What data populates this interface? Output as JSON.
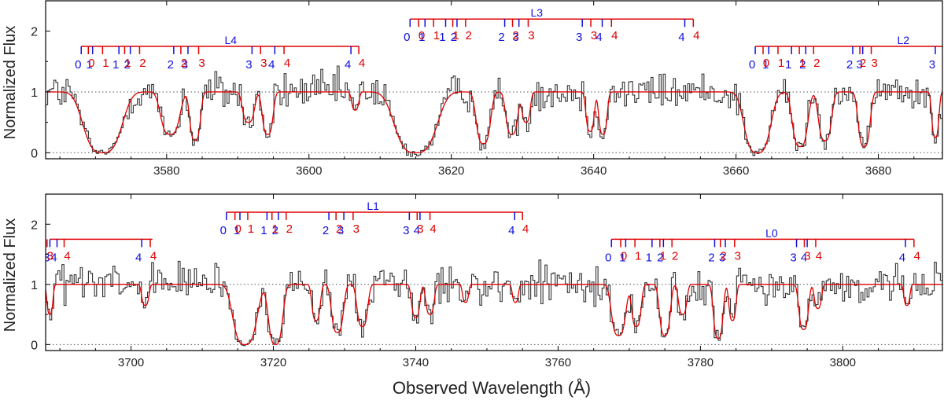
{
  "colors": {
    "data": "#333333",
    "model": "#e00000",
    "blue": "#1010e0",
    "red": "#e00000",
    "axis": "#000000",
    "grid": "#555555"
  },
  "chart_data": [
    {
      "type": "line",
      "panel": "top",
      "ylabel": "Normalized Flux",
      "xlim": [
        3563,
        3689
      ],
      "ylim": [
        -0.1,
        2.5
      ],
      "xticks": [
        3580,
        3600,
        3620,
        3640,
        3660,
        3680
      ],
      "yticks": [
        0,
        1,
        2
      ],
      "grid_lines_y": [
        0,
        1
      ],
      "series": [
        {
          "name": "observed flux",
          "style": "histogram",
          "color": "#333333"
        },
        {
          "name": "model",
          "style": "line",
          "color": "#e00000"
        }
      ],
      "absorption_troughs": [
        {
          "center": 3571,
          "width": 3.2,
          "depth": 1.0
        },
        {
          "center": 3580.5,
          "width": 1.6,
          "depth": 0.7
        },
        {
          "center": 3584,
          "width": 0.9,
          "depth": 0.8
        },
        {
          "center": 3591.5,
          "width": 1.0,
          "depth": 0.5
        },
        {
          "center": 3594.2,
          "width": 0.9,
          "depth": 0.7
        },
        {
          "center": 3606.5,
          "width": 0.6,
          "depth": 0.3
        },
        {
          "center": 3615,
          "width": 3.5,
          "depth": 1.0
        },
        {
          "center": 3624.5,
          "width": 1.2,
          "depth": 0.85
        },
        {
          "center": 3628.5,
          "width": 1.0,
          "depth": 0.7
        },
        {
          "center": 3630.5,
          "width": 0.7,
          "depth": 0.5
        },
        {
          "center": 3639.5,
          "width": 0.7,
          "depth": 0.65
        },
        {
          "center": 3641.3,
          "width": 0.7,
          "depth": 0.7
        },
        {
          "center": 3663,
          "width": 2.2,
          "depth": 1.0
        },
        {
          "center": 3669,
          "width": 1.3,
          "depth": 0.9
        },
        {
          "center": 3672.5,
          "width": 1.1,
          "depth": 0.8
        },
        {
          "center": 3678,
          "width": 1.0,
          "depth": 0.9
        },
        {
          "center": 3688,
          "width": 0.6,
          "depth": 0.75
        }
      ],
      "line_systems": [
        {
          "label": "L4",
          "bar_y": 1.75,
          "label_x": 3589,
          "bar_end": 3607,
          "blue": [
            {
              "x": 3568.0,
              "t": "0"
            },
            {
              "x": 3569.6,
              "t": "1"
            },
            {
              "x": 3573.3,
              "t": "1"
            },
            {
              "x": 3574.9,
              "t": "2"
            },
            {
              "x": 3581.0,
              "t": "2"
            },
            {
              "x": 3583.0,
              "t": "3"
            },
            {
              "x": 3592.0,
              "t": "3"
            },
            {
              "x": 3595.2,
              "t": "4"
            },
            {
              "x": 3605.9,
              "t": "4"
            }
          ],
          "red": [
            {
              "x": 3569.0,
              "t": "0"
            },
            {
              "x": 3571.0,
              "t": "1"
            },
            {
              "x": 3574.1,
              "t": "1"
            },
            {
              "x": 3576.2,
              "t": "2"
            },
            {
              "x": 3582.0,
              "t": "2"
            },
            {
              "x": 3584.5,
              "t": "3"
            },
            {
              "x": 3593.2,
              "t": "3"
            },
            {
              "x": 3596.5,
              "t": "4"
            },
            {
              "x": 3607.0,
              "t": "4"
            }
          ]
        },
        {
          "label": "L3",
          "bar_y": 2.2,
          "label_x": 3632,
          "bar_end": 3654,
          "blue": [
            {
              "x": 3614.2,
              "t": "0"
            },
            {
              "x": 3616.3,
              "t": "1"
            },
            {
              "x": 3619.2,
              "t": "1"
            },
            {
              "x": 3620.8,
              "t": "2"
            },
            {
              "x": 3627.5,
              "t": "2"
            },
            {
              "x": 3629.5,
              "t": "3"
            },
            {
              "x": 3638.4,
              "t": "3"
            },
            {
              "x": 3641.2,
              "t": "4"
            },
            {
              "x": 3652.8,
              "t": "4"
            }
          ],
          "red": [
            {
              "x": 3615.4,
              "t": "0"
            },
            {
              "x": 3617.5,
              "t": "1"
            },
            {
              "x": 3620.2,
              "t": "1"
            },
            {
              "x": 3622.0,
              "t": "2"
            },
            {
              "x": 3628.6,
              "t": "2"
            },
            {
              "x": 3630.8,
              "t": "3"
            },
            {
              "x": 3639.6,
              "t": "3"
            },
            {
              "x": 3642.5,
              "t": "4"
            },
            {
              "x": 3654.0,
              "t": "4"
            }
          ]
        },
        {
          "label": "L2",
          "bar_y": 1.75,
          "label_x": 3683.5,
          "bar_end": 3689,
          "blue": [
            {
              "x": 3662.7,
              "t": "0"
            },
            {
              "x": 3664.6,
              "t": "1"
            },
            {
              "x": 3667.8,
              "t": "1"
            },
            {
              "x": 3669.8,
              "t": "2"
            },
            {
              "x": 3676.4,
              "t": "2"
            },
            {
              "x": 3677.8,
              "t": "3"
            },
            {
              "x": 3688.0,
              "t": "3"
            }
          ],
          "red": [
            {
              "x": 3663.8,
              "t": "0"
            },
            {
              "x": 3665.9,
              "t": "1"
            },
            {
              "x": 3668.9,
              "t": "1"
            },
            {
              "x": 3670.9,
              "t": "2"
            },
            {
              "x": 3677.4,
              "t": "2"
            },
            {
              "x": 3679.0,
              "t": "3"
            }
          ]
        }
      ]
    },
    {
      "type": "line",
      "panel": "bottom",
      "xlabel": "Observed Wavelength  (Å)",
      "ylabel": "Normalized Flux",
      "xlim": [
        3688,
        3814
      ],
      "ylim": [
        -0.1,
        2.5
      ],
      "xticks": [
        3700,
        3720,
        3740,
        3760,
        3780,
        3800
      ],
      "yticks": [
        0,
        1,
        2
      ],
      "grid_lines_y": [
        0,
        1
      ],
      "series": [
        {
          "name": "observed flux",
          "style": "histogram",
          "color": "#333333"
        },
        {
          "name": "model",
          "style": "line",
          "color": "#e00000"
        }
      ],
      "absorption_troughs": [
        {
          "center": 3688.6,
          "width": 0.5,
          "depth": 0.5
        },
        {
          "center": 3702,
          "width": 0.6,
          "depth": 0.35
        },
        {
          "center": 3716,
          "width": 2.0,
          "depth": 1.0
        },
        {
          "center": 3720.3,
          "width": 1.2,
          "depth": 1.0
        },
        {
          "center": 3726,
          "width": 0.7,
          "depth": 0.6
        },
        {
          "center": 3729,
          "width": 1.0,
          "depth": 0.8
        },
        {
          "center": 3732.5,
          "width": 0.9,
          "depth": 0.7
        },
        {
          "center": 3740,
          "width": 0.7,
          "depth": 0.55
        },
        {
          "center": 3742,
          "width": 0.7,
          "depth": 0.5
        },
        {
          "center": 3747,
          "width": 0.5,
          "depth": 0.3
        },
        {
          "center": 3754,
          "width": 0.5,
          "depth": 0.3
        },
        {
          "center": 3768.5,
          "width": 1.2,
          "depth": 0.85
        },
        {
          "center": 3771,
          "width": 0.8,
          "depth": 0.7
        },
        {
          "center": 3775,
          "width": 0.9,
          "depth": 0.85
        },
        {
          "center": 3777.5,
          "width": 0.7,
          "depth": 0.5
        },
        {
          "center": 3782.5,
          "width": 0.8,
          "depth": 0.9
        },
        {
          "center": 3784.5,
          "width": 0.6,
          "depth": 0.6
        },
        {
          "center": 3794.5,
          "width": 0.8,
          "depth": 0.75
        },
        {
          "center": 3796.5,
          "width": 0.6,
          "depth": 0.4
        },
        {
          "center": 3809,
          "width": 0.5,
          "depth": 0.35
        }
      ],
      "line_systems": [
        {
          "label": "",
          "bar_y": 1.75,
          "label_x": 3695,
          "bar_end": 3703,
          "blue": [
            {
              "x": 3688.6,
              "t": "3"
            },
            {
              "x": 3689.6,
              "t": "4"
            },
            {
              "x": 3701.5,
              "t": "4"
            }
          ],
          "red": [
            {
              "x": 3688.2,
              "t": "3"
            },
            {
              "x": 3690.6,
              "t": "4"
            },
            {
              "x": 3702.7,
              "t": "4"
            }
          ]
        },
        {
          "label": "L1",
          "bar_y": 2.2,
          "label_x": 3734,
          "bar_end": 3755,
          "blue": [
            {
              "x": 3713.4,
              "t": "0"
            },
            {
              "x": 3715.3,
              "t": "1"
            },
            {
              "x": 3719.1,
              "t": "1"
            },
            {
              "x": 3720.7,
              "t": "2"
            },
            {
              "x": 3727.8,
              "t": "2"
            },
            {
              "x": 3729.9,
              "t": "3"
            },
            {
              "x": 3739.1,
              "t": "3"
            },
            {
              "x": 3740.6,
              "t": "4"
            },
            {
              "x": 3753.9,
              "t": "4"
            }
          ],
          "red": [
            {
              "x": 3714.6,
              "t": "0"
            },
            {
              "x": 3716.4,
              "t": "1"
            },
            {
              "x": 3719.8,
              "t": "1"
            },
            {
              "x": 3721.8,
              "t": "2"
            },
            {
              "x": 3728.8,
              "t": "2"
            },
            {
              "x": 3731.2,
              "t": "3"
            },
            {
              "x": 3740.2,
              "t": "3"
            },
            {
              "x": 3742.0,
              "t": "4"
            },
            {
              "x": 3755.0,
              "t": "4"
            }
          ]
        },
        {
          "label": "L0",
          "bar_y": 1.75,
          "label_x": 3790,
          "bar_end": 3810,
          "blue": [
            {
              "x": 3767.5,
              "t": "0"
            },
            {
              "x": 3769.5,
              "t": "1"
            },
            {
              "x": 3773.2,
              "t": "1"
            },
            {
              "x": 3774.8,
              "t": "2"
            },
            {
              "x": 3782.0,
              "t": "2"
            },
            {
              "x": 3783.5,
              "t": "3"
            },
            {
              "x": 3793.5,
              "t": "3"
            },
            {
              "x": 3795.0,
              "t": "4"
            },
            {
              "x": 3808.8,
              "t": "4"
            }
          ],
          "red": [
            {
              "x": 3768.8,
              "t": "0"
            },
            {
              "x": 3770.8,
              "t": "1"
            },
            {
              "x": 3774.3,
              "t": "1"
            },
            {
              "x": 3776.0,
              "t": "2"
            },
            {
              "x": 3782.8,
              "t": "2"
            },
            {
              "x": 3784.8,
              "t": "3"
            },
            {
              "x": 3794.6,
              "t": "3"
            },
            {
              "x": 3796.2,
              "t": "4"
            },
            {
              "x": 3810.0,
              "t": "4"
            }
          ]
        }
      ]
    }
  ]
}
